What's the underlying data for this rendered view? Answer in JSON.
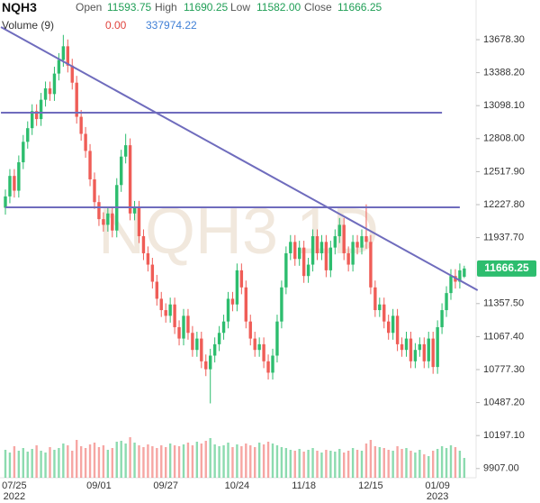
{
  "header": {
    "symbol": "NQH3",
    "open_label": "Open",
    "open": "11593.75",
    "high_label": "High",
    "high": "11690.25",
    "low_label": "Low",
    "low": "11582.00",
    "close_label": "Close",
    "close": "11666.25",
    "volume_label": "Volume (9)",
    "volume_value": "0.00",
    "volume_average": "337974.22"
  },
  "chart_data": {
    "type": "candlestick",
    "watermark": "NQH3 1D",
    "categories": [
      null,
      null,
      "07/25\n2022",
      null,
      null,
      null,
      null,
      null,
      null,
      null,
      null,
      null,
      null,
      null,
      null,
      null,
      null,
      null,
      null,
      null,
      null,
      "09/01",
      null,
      null,
      null,
      null,
      null,
      null,
      null,
      null,
      null,
      null,
      null,
      null,
      null,
      null,
      "09/27",
      null,
      null,
      null,
      null,
      null,
      null,
      null,
      null,
      null,
      null,
      null,
      null,
      null,
      null,
      null,
      "10/24",
      null,
      null,
      null,
      null,
      null,
      null,
      null,
      null,
      null,
      null,
      null,
      null,
      null,
      null,
      "11/18",
      null,
      null,
      null,
      null,
      null,
      null,
      null,
      null,
      null,
      null,
      null,
      null,
      null,
      null,
      "12/15",
      null,
      null,
      null,
      null,
      null,
      null,
      null,
      null,
      null,
      null,
      null,
      null,
      null,
      null,
      "01/09\n2023",
      null,
      null,
      null,
      null,
      null,
      null
    ],
    "open": [
      12200,
      12300,
      12480,
      12350,
      12600,
      12780,
      12900,
      13050,
      12980,
      13150,
      13250,
      13200,
      13380,
      13500,
      13620,
      13450,
      13300,
      13000,
      12850,
      12700,
      12450,
      12250,
      12100,
      12050,
      12150,
      12000,
      12400,
      12650,
      12750,
      12150,
      12200,
      11950,
      11800,
      11700,
      11550,
      11400,
      11300,
      11250,
      11350,
      11150,
      11050,
      11250,
      11100,
      10950,
      11050,
      10850,
      10780,
      10900,
      11000,
      11100,
      11200,
      11400,
      11350,
      11650,
      11500,
      11200,
      11050,
      10950,
      11000,
      10850,
      10750,
      10900,
      11200,
      11500,
      11800,
      11900,
      11750,
      11850,
      11600,
      11700,
      11950,
      11800,
      11900,
      11650,
      11850,
      11950,
      12050,
      11800,
      11700,
      11900,
      11850,
      11950,
      11900,
      11500,
      11300,
      11350,
      11200,
      11100,
      11250,
      11000,
      10950,
      11050,
      10850,
      10950,
      11000,
      10850,
      11050,
      10800,
      11150,
      11300,
      11450,
      11600,
      11550,
      11593.75
    ],
    "high": [
      12360,
      12540,
      12540,
      12660,
      12840,
      12960,
      13110,
      13110,
      13210,
      13310,
      13310,
      13440,
      13560,
      13720,
      13680,
      13510,
      13360,
      13060,
      12910,
      12760,
      12510,
      12310,
      12160,
      12210,
      12210,
      12460,
      12710,
      12850,
      12810,
      12260,
      12260,
      12010,
      11860,
      11760,
      11610,
      11460,
      11360,
      11410,
      11410,
      11210,
      11310,
      11310,
      11160,
      11110,
      11110,
      10910,
      10960,
      11060,
      11160,
      11260,
      11460,
      11460,
      11710,
      11710,
      11560,
      11260,
      11110,
      11060,
      11060,
      10910,
      10960,
      11260,
      11560,
      11860,
      11960,
      11960,
      11910,
      11910,
      11760,
      12010,
      12010,
      11960,
      11960,
      11910,
      12010,
      12110,
      12110,
      11860,
      11960,
      11960,
      12010,
      12230,
      11960,
      11560,
      11410,
      11410,
      11260,
      11310,
      11310,
      11060,
      11110,
      11110,
      11010,
      11060,
      11060,
      11110,
      11110,
      11210,
      11360,
      11510,
      11660,
      11660,
      11710,
      11690.25
    ],
    "low": [
      12140,
      12240,
      12290,
      12290,
      12540,
      12720,
      12840,
      12920,
      12920,
      13090,
      13140,
      13140,
      13320,
      13440,
      13390,
      13240,
      12940,
      12790,
      12640,
      12390,
      12190,
      12040,
      11990,
      11990,
      11940,
      11940,
      12340,
      12590,
      12090,
      12090,
      11890,
      11740,
      11640,
      11490,
      11340,
      11240,
      11190,
      11190,
      11090,
      10990,
      10990,
      11040,
      10890,
      10890,
      10790,
      10720,
      10480,
      10840,
      10940,
      11040,
      11140,
      11290,
      11290,
      11440,
      11140,
      10990,
      10890,
      10890,
      10790,
      10690,
      10690,
      10840,
      11140,
      11440,
      11740,
      11690,
      11690,
      11540,
      11540,
      11640,
      11740,
      11740,
      11590,
      11590,
      11790,
      11890,
      11740,
      11640,
      11640,
      11790,
      11790,
      11840,
      11440,
      11240,
      11240,
      11140,
      11040,
      11040,
      10940,
      10890,
      10890,
      10790,
      10790,
      10890,
      10790,
      10790,
      10740,
      10740,
      11090,
      11240,
      11390,
      11490,
      11490,
      11582
    ],
    "close": [
      12300,
      12480,
      12350,
      12600,
      12780,
      12900,
      13050,
      12980,
      13150,
      13250,
      13200,
      13380,
      13500,
      13620,
      13450,
      13300,
      13000,
      12850,
      12700,
      12450,
      12250,
      12100,
      12050,
      12150,
      12000,
      12400,
      12650,
      12750,
      12150,
      12200,
      11950,
      11800,
      11700,
      11550,
      11400,
      11300,
      11250,
      11350,
      11150,
      11050,
      11250,
      11100,
      10950,
      11050,
      10850,
      10780,
      10900,
      11000,
      11100,
      11200,
      11400,
      11350,
      11650,
      11500,
      11200,
      11050,
      10950,
      11000,
      10850,
      10750,
      10900,
      11200,
      11500,
      11800,
      11900,
      11750,
      11850,
      11600,
      11700,
      11950,
      11800,
      11900,
      11650,
      11850,
      11950,
      12050,
      11800,
      11700,
      11900,
      11850,
      11950,
      11900,
      11500,
      11300,
      11350,
      11200,
      11100,
      11250,
      11000,
      10950,
      11050,
      10850,
      10950,
      11000,
      10850,
      11050,
      10800,
      11150,
      11300,
      11450,
      11600,
      11550,
      11650,
      11666.25
    ],
    "volume": [
      310000,
      280000,
      350000,
      300000,
      330000,
      290000,
      320000,
      360000,
      300000,
      280000,
      340000,
      310000,
      330000,
      380000,
      360000,
      300000,
      420000,
      350000,
      330000,
      370000,
      390000,
      340000,
      360000,
      310000,
      330000,
      400000,
      410000,
      380000,
      450000,
      390000,
      360000,
      340000,
      370000,
      350000,
      330000,
      360000,
      340000,
      380000,
      360000,
      350000,
      370000,
      390000,
      360000,
      400000,
      380000,
      410000,
      440000,
      370000,
      350000,
      360000,
      390000,
      340000,
      370000,
      350000,
      380000,
      360000,
      340000,
      390000,
      370000,
      400000,
      380000,
      360000,
      340000,
      330000,
      310000,
      300000,
      320000,
      290000,
      310000,
      330000,
      300000,
      280000,
      310000,
      300000,
      290000,
      320000,
      280000,
      300000,
      330000,
      310000,
      300000,
      380000,
      420000,
      350000,
      340000,
      330000,
      310000,
      300000,
      350000,
      320000,
      330000,
      300000,
      280000,
      310000,
      260000,
      240000,
      300000,
      320000,
      350000,
      330000,
      360000,
      340000,
      300000,
      220000
    ],
    "up_color": "#2dbd6e",
    "down_color": "#ef5d57",
    "line_color": "#6f6cbd",
    "ylim": [
      9826,
      14027
    ],
    "volume_lim": [
      0,
      500000
    ],
    "yticks": [
      {
        "value": 13678.3,
        "label": "13678.30"
      },
      {
        "value": 13388.2,
        "label": "13388.20"
      },
      {
        "value": 13098.1,
        "label": "13098.10"
      },
      {
        "value": 12808,
        "label": "12808.00"
      },
      {
        "value": 12517.9,
        "label": "12517.90"
      },
      {
        "value": 12227.8,
        "label": "12227.80"
      },
      {
        "value": 11937.7,
        "label": "11937.70"
      },
      {
        "value": 11357.5,
        "label": "11357.50"
      },
      {
        "value": 11067.4,
        "label": "11067.40"
      },
      {
        "value": 10777.3,
        "label": "10777.30"
      },
      {
        "value": 10487.2,
        "label": "10487.20"
      },
      {
        "value": 10197.1,
        "label": "10197.10"
      },
      {
        "value": 9907,
        "label": "9907.00"
      }
    ],
    "lines": [
      {
        "start": [
          -1,
          13789
        ],
        "end": [
          106,
          11475
        ]
      },
      {
        "start": [
          -1,
          13036
        ],
        "end": [
          98,
          13036
        ]
      },
      {
        "start": [
          0,
          12204
        ],
        "end": [
          102,
          12204
        ]
      }
    ]
  }
}
